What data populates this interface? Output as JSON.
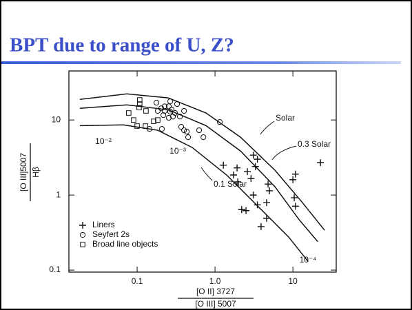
{
  "slide": {
    "title": "BPT due to range of U, Z?"
  },
  "chart_data": {
    "type": "scatter",
    "log_x": true,
    "log_y": true,
    "grid": false,
    "legend": "lower left",
    "xlim": [
      0.0133,
      36
    ],
    "ylim": [
      0.094,
      45
    ],
    "xticks": [
      0.1,
      {
        "value": 1,
        "label": "1.0"
      },
      10
    ],
    "yticks": [
      0.1,
      1,
      10
    ],
    "xlabel": [
      "[O II] 3727",
      "[O III] 5007"
    ],
    "ylabel": [
      "[O III]5007",
      "Hβ"
    ],
    "series": [
      {
        "name": "Liners",
        "marker": "plus",
        "color": "#111111",
        "x": [
          1.28,
          1.92,
          2.6,
          1.73,
          2.9,
          3.3,
          3.5,
          3.1,
          1.96,
          2.2,
          2.5,
          3.1,
          3.5,
          4.8,
          5.0,
          4.6,
          3.9,
          4.6,
          10,
          10.4,
          10.8,
          22.6,
          10.8
        ],
        "y": [
          2.5,
          2.3,
          2.05,
          1.85,
          1.66,
          2.4,
          3.0,
          3.4,
          1.5,
          0.64,
          0.62,
          1.0,
          0.74,
          1.4,
          1.14,
          0.79,
          0.38,
          0.49,
          1.6,
          0.92,
          0.71,
          2.7,
          1.9
        ]
      },
      {
        "name": "Seyfert 2s",
        "marker": "circle",
        "color": "#111111",
        "x": [
          0.177,
          0.204,
          0.226,
          0.255,
          0.277,
          0.307,
          0.288,
          0.255,
          0.217,
          0.354,
          0.184,
          0.4,
          0.266,
          0.226,
          0.326,
          0.368,
          0.4,
          0.434,
          0.452,
          0.208,
          0.266,
          1.15,
          0.625,
          0.71,
          0.144
        ],
        "y": [
          17,
          14.3,
          13.2,
          15.2,
          13.7,
          12.4,
          11.1,
          10.7,
          11.6,
          11.1,
          13.2,
          13.2,
          17.7,
          15.2,
          16.3,
          8.1,
          7.3,
          7.0,
          5.9,
          7.6,
          12.9,
          9.4,
          7.3,
          5.9,
          7.6
        ]
      },
      {
        "name": "Broad line objects",
        "marker": "square",
        "color": "#111111",
        "x": [
          0.078,
          0.108,
          0.108,
          0.106,
          0.09,
          0.1,
          0.128,
          0.13,
          0.163,
          0.184
        ],
        "y": [
          12.4,
          18.5,
          16.3,
          14.6,
          10,
          8.3,
          8.3,
          13.2,
          9.6,
          10
        ]
      }
    ],
    "curves": [
      {
        "name": "Solar",
        "x": [
          0.0184,
          0.0737,
          0.25,
          0.767,
          2.12,
          5.89,
          13.3,
          25.5
        ],
        "y": [
          18.8,
          22.3,
          19.7,
          12.4,
          5.9,
          2.14,
          0.79,
          0.34
        ]
      },
      {
        "name": "0.3 Solar",
        "x": [
          0.0184,
          0.0737,
          0.25,
          0.767,
          2.12,
          5.89,
          12.0,
          20.8
        ],
        "y": [
          14.3,
          15.9,
          13.7,
          8.4,
          3.87,
          1.29,
          0.47,
          0.24
        ]
      },
      {
        "name": "0.1 Solar",
        "x": [
          0.0184,
          0.0665,
          0.184,
          0.51,
          1.41,
          3.92,
          8.85,
          15.7
        ],
        "y": [
          8.4,
          8.6,
          7.3,
          4.3,
          1.85,
          0.64,
          0.275,
          0.13
        ]
      }
    ],
    "annotations": [
      "10⁻²",
      "10⁻³",
      "10⁻⁴"
    ]
  }
}
